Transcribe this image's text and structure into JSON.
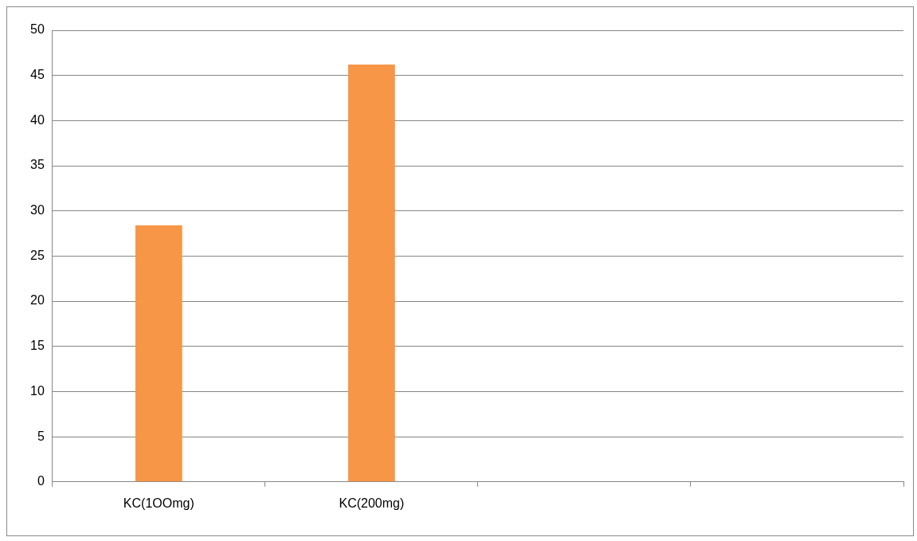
{
  "chart_data": {
    "type": "bar",
    "categories": [
      "KC(1OOmg)",
      "KC(200mg)",
      null,
      null
    ],
    "values": [
      28.4,
      46.2,
      null,
      null
    ],
    "color": "#f79646",
    "ylim": [
      0,
      50
    ],
    "yticks": [
      0,
      5,
      10,
      15,
      20,
      25,
      30,
      35,
      40,
      45,
      50
    ],
    "grid": "y",
    "legend": false
  }
}
